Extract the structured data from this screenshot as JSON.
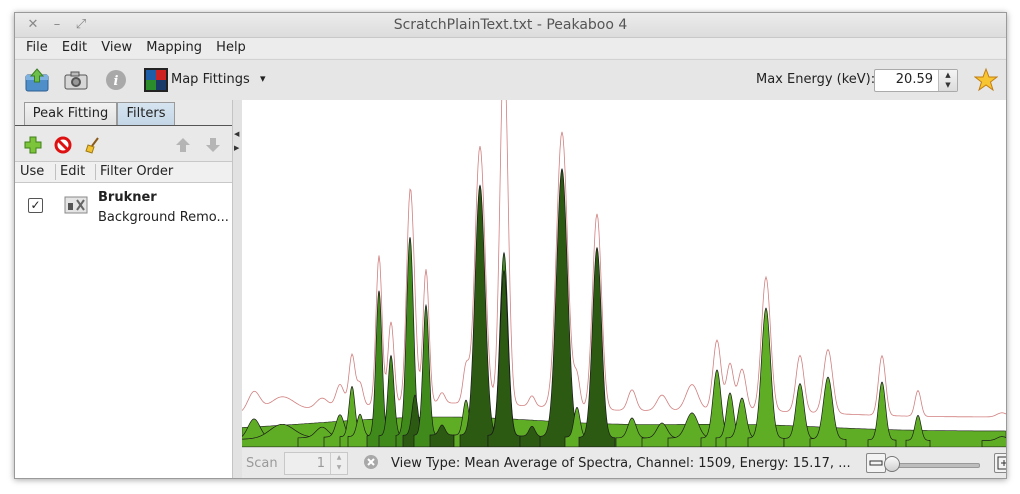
{
  "window": {
    "title": "ScratchPlainText.txt - Peakaboo 4"
  },
  "menu": [
    "File",
    "Edit",
    "View",
    "Mapping",
    "Help"
  ],
  "toolbar": {
    "map_fittings_label": "Map Fittings",
    "dropdown_arrow": "▾",
    "max_energy_label": "Max Energy (keV):",
    "max_energy_value": "20.59"
  },
  "left_panel": {
    "tabs": [
      "Peak Fitting",
      "Filters"
    ],
    "active_tab": "Filters",
    "columns": [
      "Use",
      "Edit",
      "Filter Order"
    ],
    "filters": [
      {
        "use": true,
        "name": "Brukner",
        "description": "Background Remo..."
      }
    ]
  },
  "status": {
    "scan_label": "Scan",
    "scan_value": "1",
    "view_text": "View Type: Mean Average of Spectra,  Channel: 1509,  Energy: 15.17,  ..."
  },
  "colors": {
    "peak_dark": "#2c5a12",
    "peak_mid": "#3f8a1a",
    "peak_light": "#5fad24",
    "raw_line": "#d17f7f",
    "selected_tab": "#c7d8e8"
  },
  "icons": [
    "open-icon",
    "camera-icon",
    "info-icon",
    "map-icon",
    "star-icon",
    "add-icon",
    "remove-icon",
    "clear-icon",
    "move-up-icon",
    "move-down-icon",
    "filter-edit-icon",
    "clear-scan-icon",
    "zoom-out-icon",
    "zoom-in-icon"
  ]
}
